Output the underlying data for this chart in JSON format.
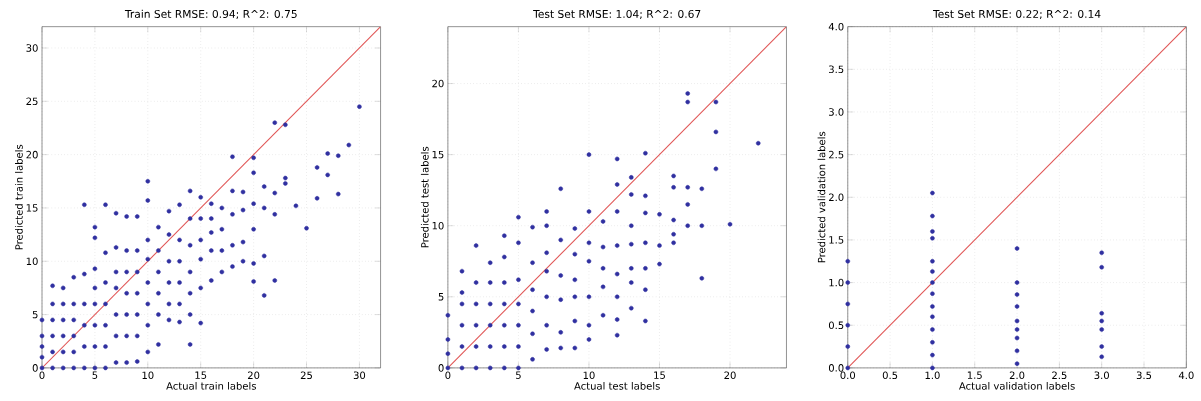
{
  "chart_data": [
    {
      "type": "scatter",
      "title": "Train Set RMSE: 0.94; R^2: 0.75",
      "xlabel": "Actual train labels",
      "ylabel": "Predicted train labels",
      "xlim": [
        0,
        32
      ],
      "ylim": [
        0,
        32
      ],
      "xticks": [
        0,
        5,
        10,
        15,
        20,
        25,
        30
      ],
      "yticks": [
        0,
        5,
        10,
        15,
        20,
        25,
        30
      ],
      "grid": true,
      "series": [
        {
          "marker": "circle",
          "color": "#3030a0",
          "x": [
            0,
            0,
            0,
            0,
            0,
            1,
            1,
            1,
            1,
            1,
            1,
            2,
            2,
            2,
            2,
            2,
            2,
            3,
            3,
            3,
            3,
            3,
            3,
            4,
            4,
            4,
            4,
            4,
            4,
            5,
            5,
            5,
            5,
            5,
            5,
            5,
            5,
            6,
            6,
            6,
            6,
            6,
            6,
            6,
            7,
            7,
            7,
            7,
            7,
            7,
            7,
            8,
            8,
            8,
            8,
            8,
            8,
            8,
            9,
            9,
            9,
            9,
            9,
            9,
            9,
            10,
            10,
            10,
            10,
            10,
            10,
            10,
            10,
            11,
            11,
            11,
            11,
            11,
            11,
            12,
            12,
            12,
            12,
            12,
            12,
            13,
            13,
            13,
            13,
            13,
            13,
            14,
            14,
            14,
            14,
            14,
            14,
            14,
            15,
            15,
            15,
            15,
            15,
            15,
            16,
            16,
            16,
            16,
            16,
            17,
            17,
            17,
            17,
            18,
            18,
            18,
            18,
            18,
            19,
            19,
            19,
            19,
            20,
            20,
            20,
            20,
            20,
            20,
            21,
            21,
            21,
            21,
            22,
            22,
            22,
            22,
            23,
            23,
            23,
            24,
            25,
            26,
            26,
            27,
            27,
            28,
            28,
            29,
            30
          ],
          "values": [
            0,
            1,
            2,
            3,
            4.5,
            0,
            1.5,
            3,
            4.5,
            6,
            7.7,
            0,
            1.5,
            3,
            4.5,
            6,
            7.5,
            0,
            1.5,
            3,
            4.5,
            6,
            8.5,
            0,
            2,
            4,
            6,
            8.8,
            15.3,
            0,
            2,
            4,
            6,
            7.5,
            9.3,
            12.2,
            13.2,
            0,
            2,
            4,
            6,
            8,
            10.8,
            15.3,
            0.5,
            3,
            5,
            7.5,
            9,
            11.3,
            14.5,
            0.5,
            3,
            5,
            7,
            9,
            11,
            14.2,
            0.6,
            3,
            5,
            7,
            9,
            11,
            14.2,
            1.5,
            4,
            6,
            8,
            10.2,
            12,
            15.7,
            17.5,
            2.2,
            5,
            7,
            9,
            11,
            13.2,
            4.5,
            6,
            8,
            10,
            12.5,
            14.7,
            4.3,
            6,
            8,
            10,
            12,
            15.3,
            2.2,
            5,
            7,
            9,
            11.5,
            14,
            16.6,
            4.2,
            7.5,
            10.2,
            12,
            14,
            16,
            8.2,
            11,
            12.7,
            14,
            15.4,
            9,
            11,
            13,
            15,
            9.5,
            11.5,
            14.4,
            16.6,
            19.8,
            10,
            11.8,
            14.8,
            16.5,
            8.1,
            9.8,
            13,
            15.4,
            18.3,
            19.7,
            6.8,
            10.5,
            15,
            17,
            8.2,
            14.4,
            16.4,
            23,
            17.3,
            17.8,
            22.8,
            15.2,
            13.1,
            15.9,
            18.8,
            18.1,
            20.1,
            16.3,
            19.9,
            20.9,
            24.5
          ]
        },
        {
          "type": "line",
          "marker": "none",
          "color": "#e05555",
          "x": [
            0,
            32
          ],
          "values": [
            0,
            32
          ]
        }
      ]
    },
    {
      "type": "scatter",
      "title": "Test Set RMSE: 1.04; R^2: 0.67",
      "xlabel": "Actual test labels",
      "ylabel": "Predicted test labels",
      "xlim": [
        0,
        24
      ],
      "ylim": [
        0,
        24
      ],
      "xticks": [
        0,
        5,
        10,
        15,
        20
      ],
      "yticks": [
        0,
        5,
        10,
        15,
        20
      ],
      "grid": true,
      "series": [
        {
          "marker": "circle",
          "color": "#3030a0",
          "x": [
            0,
            0,
            0,
            0,
            1,
            1,
            1,
            1,
            1,
            1,
            2,
            2,
            2,
            2,
            2,
            2,
            3,
            3,
            3,
            3,
            3,
            3,
            4,
            4,
            4,
            4,
            4,
            4,
            4,
            5,
            5,
            5,
            5,
            5,
            5,
            5,
            6,
            6,
            6,
            6,
            6,
            6,
            7,
            7,
            7,
            7,
            7,
            7,
            7,
            8,
            8,
            8,
            8,
            8,
            8,
            9,
            9,
            9,
            9,
            9,
            9,
            10,
            10,
            10,
            10,
            10,
            10,
            10,
            11,
            11,
            11,
            11,
            11,
            12,
            12,
            12,
            12,
            12,
            12,
            12,
            12,
            13,
            13,
            13,
            13,
            13,
            13,
            13,
            14,
            14,
            14,
            14,
            14,
            14,
            14,
            15,
            15,
            15,
            16,
            16,
            16,
            16,
            16,
            17,
            17,
            17,
            17,
            17,
            18,
            18,
            18,
            19,
            19,
            19,
            20,
            22
          ],
          "values": [
            0,
            1,
            2,
            3.7,
            0,
            1.5,
            3,
            4.5,
            5.3,
            6.8,
            0,
            1.5,
            3,
            4.5,
            6,
            8.6,
            0,
            1.5,
            3,
            4.5,
            6,
            7.4,
            0,
            1.5,
            3,
            4.5,
            6,
            7.8,
            9.3,
            0,
            1.5,
            3,
            4.5,
            6.2,
            8.8,
            10.6,
            0.6,
            2.4,
            4,
            5.5,
            7.4,
            9.9,
            1.3,
            3,
            5,
            6.8,
            8.1,
            10,
            11,
            1.4,
            2.5,
            4.8,
            6.5,
            9,
            12.6,
            1.4,
            3.3,
            5,
            6.2,
            8,
            9.8,
            2,
            3,
            5,
            7.5,
            8.8,
            11,
            15,
            3.7,
            5.7,
            7,
            8.5,
            10.3,
            2.3,
            3.4,
            5,
            6.6,
            8.6,
            11,
            12.9,
            14.7,
            4.2,
            6,
            7,
            8.7,
            10,
            12.2,
            13.4,
            3.3,
            5.5,
            7,
            8.8,
            10.9,
            12.1,
            15.1,
            7.3,
            8.6,
            10.8,
            8.8,
            9.4,
            10.4,
            12.7,
            13.5,
            10,
            11.5,
            12.7,
            18.7,
            19.3,
            6.3,
            10,
            12.6,
            14,
            16.6,
            18.7,
            10.1,
            15.8
          ]
        },
        {
          "type": "line",
          "marker": "none",
          "color": "#e05555",
          "x": [
            0,
            24
          ],
          "values": [
            0,
            24
          ]
        }
      ]
    },
    {
      "type": "scatter",
      "title": "Test Set RMSE: 0.22; R^2: 0.14",
      "xlabel": "Actual validation labels",
      "ylabel": "Predicted validation labels",
      "xlim": [
        0,
        4
      ],
      "ylim": [
        0,
        4
      ],
      "xticks": [
        {
          "value": 0,
          "label": "0.0"
        },
        0.5,
        {
          "value": 1,
          "label": "1.0"
        },
        1.5,
        {
          "value": 2,
          "label": "2.0"
        },
        2.5,
        {
          "value": 3,
          "label": "3.0"
        },
        3.5,
        {
          "value": 4,
          "label": "4.0"
        }
      ],
      "yticks": [
        {
          "value": 0,
          "label": "0.0"
        },
        0.5,
        {
          "value": 1,
          "label": "1.0"
        },
        1.5,
        {
          "value": 2,
          "label": "2.0"
        },
        2.5,
        {
          "value": 3,
          "label": "3.0"
        },
        3.5,
        {
          "value": 4,
          "label": "4.0"
        }
      ],
      "grid": true,
      "series": [
        {
          "marker": "circle",
          "color": "#3030a0",
          "x": [
            0,
            0,
            0,
            0,
            0,
            0,
            1,
            1,
            1,
            1,
            1,
            1,
            1,
            1,
            1,
            1,
            1,
            1,
            1,
            1,
            2,
            2,
            2,
            2,
            2,
            2,
            2,
            2,
            2,
            3,
            3,
            3,
            3,
            3,
            3,
            3
          ],
          "values": [
            0,
            0.25,
            0.5,
            0.75,
            1,
            1.25,
            0,
            0.15,
            0.3,
            0.45,
            0.6,
            0.72,
            0.87,
            1,
            1.13,
            1.25,
            1.52,
            1.6,
            1.78,
            2.05,
            0.05,
            0.2,
            0.35,
            0.45,
            0.55,
            0.72,
            0.86,
            1,
            1.4,
            0.13,
            0.25,
            0.45,
            0.55,
            0.64,
            1.18,
            1.35
          ]
        },
        {
          "type": "line",
          "marker": "none",
          "color": "#e05555",
          "x": [
            0,
            4
          ],
          "values": [
            0,
            4
          ]
        }
      ]
    }
  ]
}
